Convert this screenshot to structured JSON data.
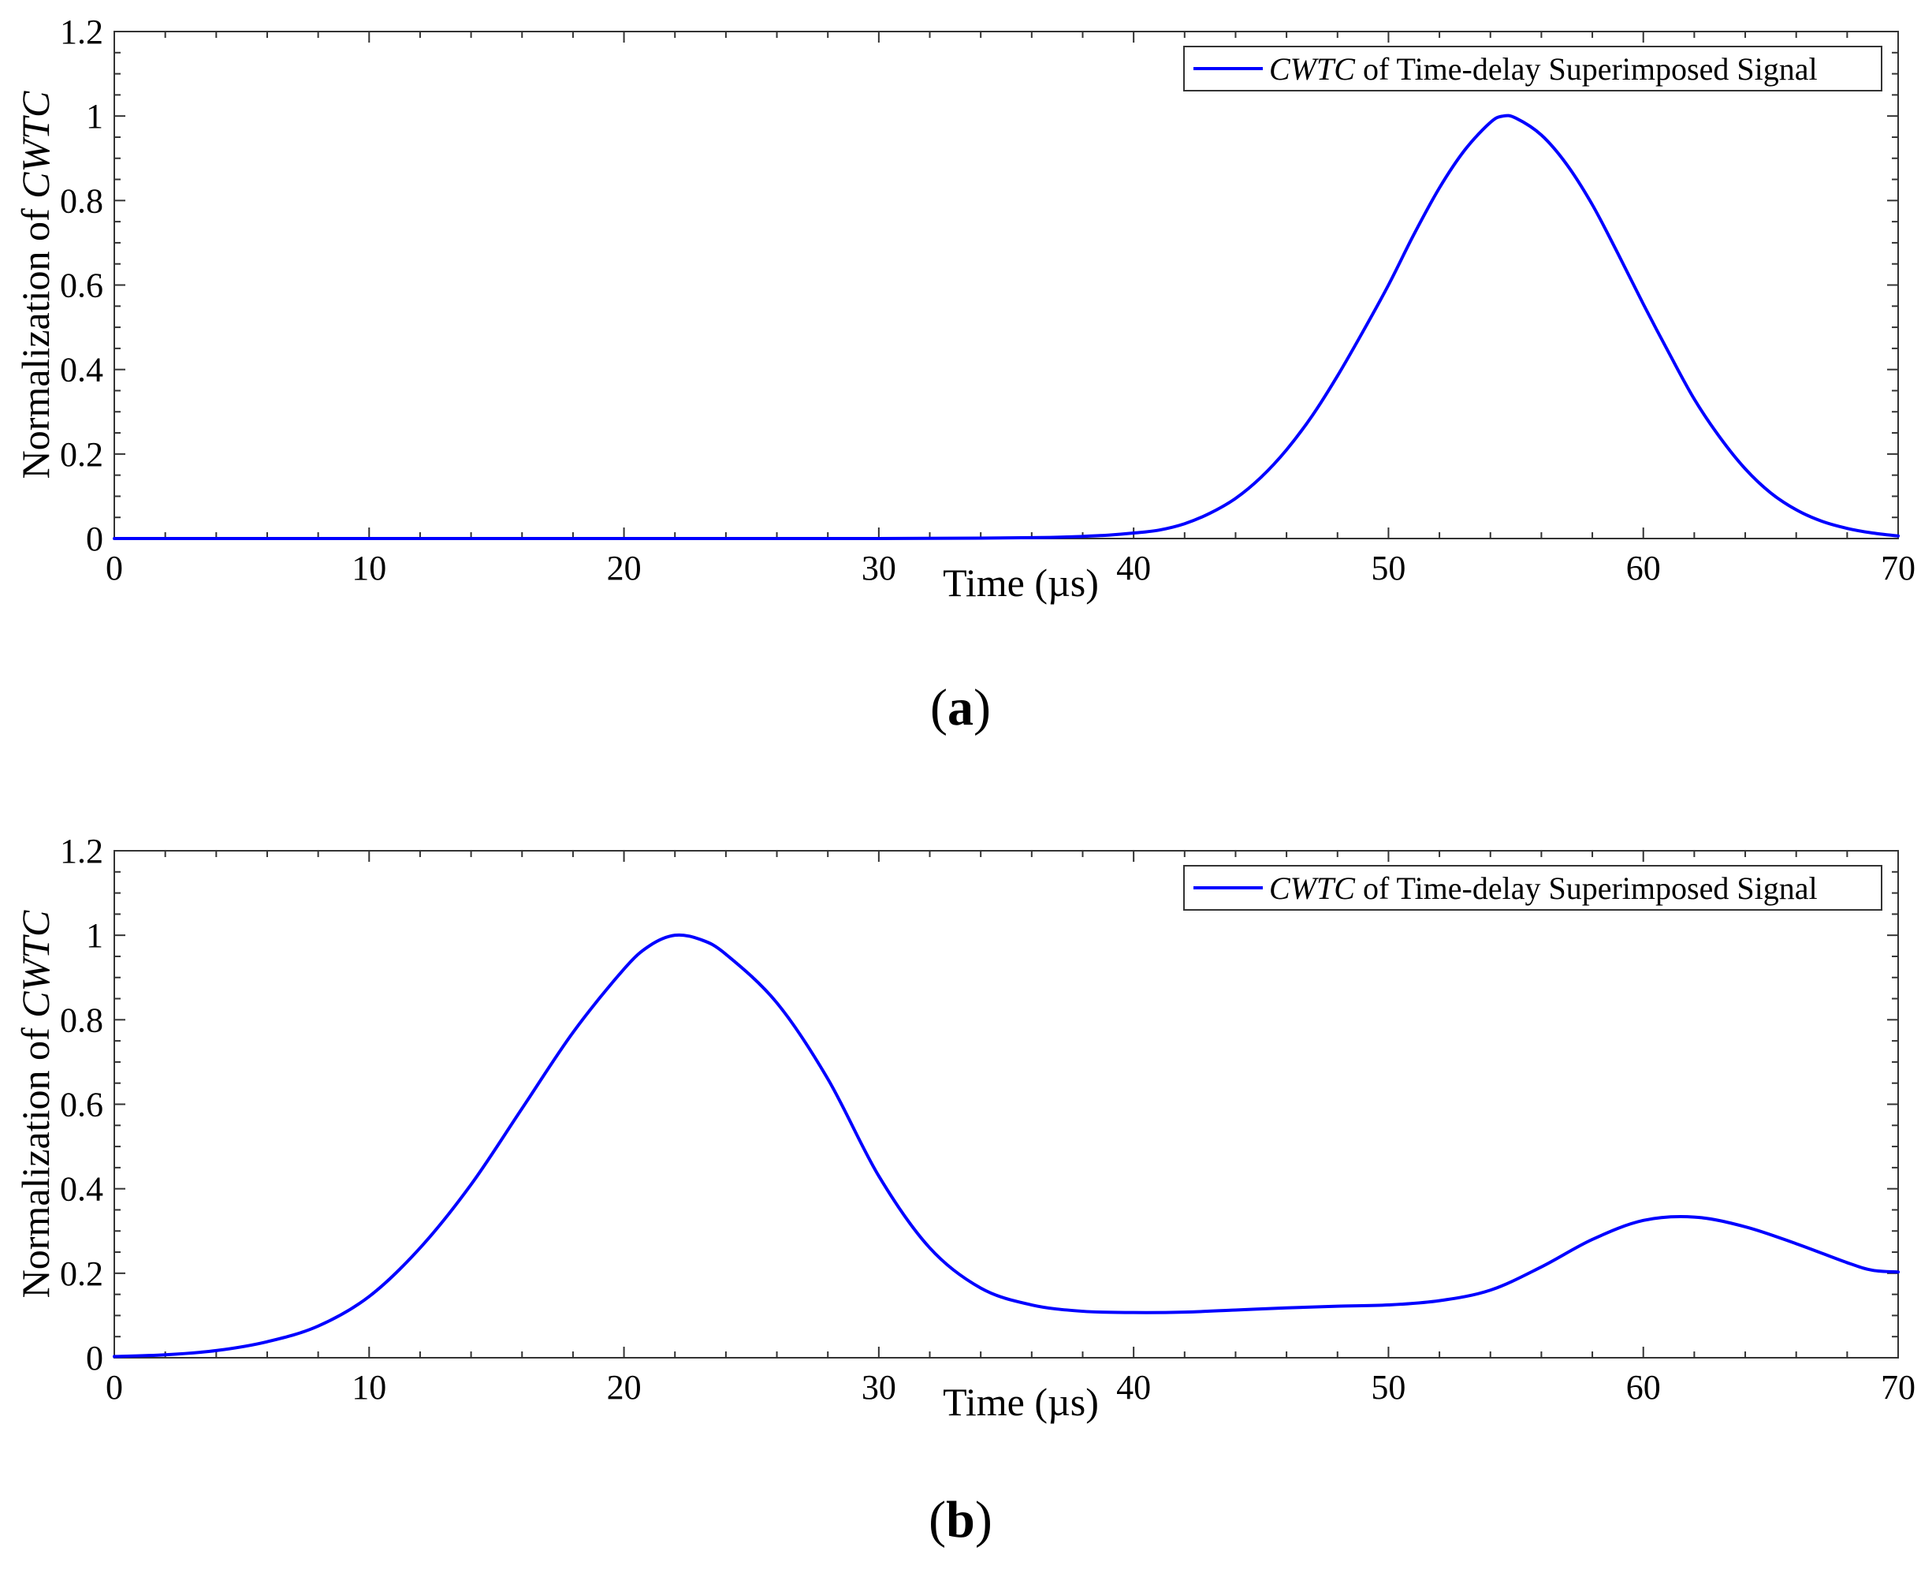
{
  "chart_data": [
    {
      "type": "line",
      "panel_label": "a",
      "xlabel": "Time (µs)",
      "ylabel_prefix": "Normalization of ",
      "ylabel_italic": "CWTC",
      "xlim": [
        0,
        70
      ],
      "ylim": [
        0,
        1.2
      ],
      "xticks": [
        0,
        10,
        20,
        30,
        40,
        50,
        60,
        70
      ],
      "xtick_labels": [
        "0",
        "10",
        "20",
        "30",
        "40",
        "50",
        "60",
        "70"
      ],
      "yticks": [
        0,
        0.2,
        0.4,
        0.6,
        0.8,
        1,
        1.2
      ],
      "ytick_labels": [
        "0",
        "0.2",
        "0.4",
        "0.6",
        "0.8",
        "1",
        "1.2"
      ],
      "grid": false,
      "legend_position": "top-right",
      "line_color": "#0000ff",
      "series": [
        {
          "name_italic": "CWTC",
          "name_rest": " of Time-delay Superimposed Signal",
          "x": [
            0,
            5,
            10,
            15,
            20,
            25,
            30,
            34,
            36,
            37,
            38,
            39,
            40,
            41,
            42,
            43,
            44,
            45,
            46,
            47,
            48,
            49,
            50,
            51,
            52,
            53,
            54,
            54.5,
            55,
            56,
            57,
            58,
            59,
            60,
            61,
            62,
            63,
            64,
            65,
            66,
            67,
            68,
            69,
            70
          ],
          "y": [
            0,
            0,
            0,
            0,
            0,
            0,
            0,
            0.001,
            0.002,
            0.003,
            0.005,
            0.008,
            0.013,
            0.02,
            0.035,
            0.06,
            0.095,
            0.145,
            0.21,
            0.29,
            0.385,
            0.49,
            0.6,
            0.72,
            0.83,
            0.92,
            0.985,
            1.0,
            0.995,
            0.955,
            0.885,
            0.79,
            0.675,
            0.555,
            0.44,
            0.33,
            0.24,
            0.165,
            0.108,
            0.068,
            0.041,
            0.024,
            0.013,
            0.006
          ]
        }
      ]
    },
    {
      "type": "line",
      "panel_label": "b",
      "xlabel": "Time (µs)",
      "ylabel_prefix": "Normalization of ",
      "ylabel_italic": "CWTC",
      "xlim": [
        0,
        70
      ],
      "ylim": [
        0,
        1.2
      ],
      "xticks": [
        0,
        10,
        20,
        30,
        40,
        50,
        60,
        70
      ],
      "xtick_labels": [
        "0",
        "10",
        "20",
        "30",
        "40",
        "50",
        "60",
        "70"
      ],
      "yticks": [
        0,
        0.2,
        0.4,
        0.6,
        0.8,
        1,
        1.2
      ],
      "ytick_labels": [
        "0",
        "0.2",
        "0.4",
        "0.6",
        "0.8",
        "1",
        "1.2"
      ],
      "grid": false,
      "legend_position": "top-right",
      "line_color": "#0000ff",
      "series": [
        {
          "name_italic": "CWTC",
          "name_rest": " of Time-delay Superimposed Signal",
          "x": [
            0,
            2,
            4,
            6,
            8,
            10,
            12,
            14,
            16,
            18,
            20,
            21,
            22,
            23,
            24,
            26,
            28,
            30,
            32,
            34,
            36,
            38,
            40,
            42,
            44,
            46,
            48,
            50,
            52,
            54,
            56,
            58,
            60,
            62,
            64,
            66,
            68,
            69,
            70
          ],
          "y": [
            0.003,
            0.007,
            0.017,
            0.038,
            0.075,
            0.145,
            0.26,
            0.41,
            0.59,
            0.77,
            0.92,
            0.975,
            1.0,
            0.99,
            0.955,
            0.84,
            0.66,
            0.43,
            0.26,
            0.165,
            0.125,
            0.11,
            0.107,
            0.108,
            0.113,
            0.118,
            0.122,
            0.125,
            0.135,
            0.16,
            0.215,
            0.28,
            0.325,
            0.333,
            0.31,
            0.27,
            0.225,
            0.207,
            0.203
          ]
        }
      ]
    }
  ]
}
